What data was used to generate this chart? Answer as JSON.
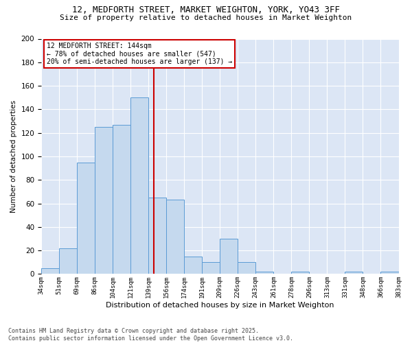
{
  "title_line1": "12, MEDFORTH STREET, MARKET WEIGHTON, YORK, YO43 3FF",
  "title_line2": "Size of property relative to detached houses in Market Weighton",
  "xlabel": "Distribution of detached houses by size in Market Weighton",
  "ylabel": "Number of detached properties",
  "bar_color": "#c5d9ee",
  "bar_edge_color": "#5b9bd5",
  "background_color": "#dce6f5",
  "grid_color": "#ffffff",
  "ref_line_color": "#cc0000",
  "ref_line_x": 144,
  "annotation_title": "12 MEDFORTH STREET: 144sqm",
  "annotation_line1": "← 78% of detached houses are smaller (547)",
  "annotation_line2": "20% of semi-detached houses are larger (137) →",
  "annotation_box_color": "#cc0000",
  "footer_line1": "Contains HM Land Registry data © Crown copyright and database right 2025.",
  "footer_line2": "Contains public sector information licensed under the Open Government Licence v3.0.",
  "bin_edges": [
    34,
    51,
    69,
    86,
    104,
    121,
    139,
    156,
    174,
    191,
    209,
    226,
    243,
    261,
    278,
    296,
    313,
    331,
    348,
    366,
    383
  ],
  "bin_labels": [
    "34sqm",
    "51sqm",
    "69sqm",
    "86sqm",
    "104sqm",
    "121sqm",
    "139sqm",
    "156sqm",
    "174sqm",
    "191sqm",
    "209sqm",
    "226sqm",
    "243sqm",
    "261sqm",
    "278sqm",
    "296sqm",
    "313sqm",
    "331sqm",
    "348sqm",
    "366sqm",
    "383sqm"
  ],
  "bar_heights": [
    5,
    22,
    95,
    125,
    127,
    150,
    65,
    63,
    15,
    10,
    30,
    10,
    2,
    0,
    2,
    0,
    0,
    2,
    0,
    2
  ],
  "ylim": [
    0,
    200
  ],
  "yticks": [
    0,
    20,
    40,
    60,
    80,
    100,
    120,
    140,
    160,
    180,
    200
  ],
  "fig_width": 6.0,
  "fig_height": 5.0,
  "dpi": 100
}
